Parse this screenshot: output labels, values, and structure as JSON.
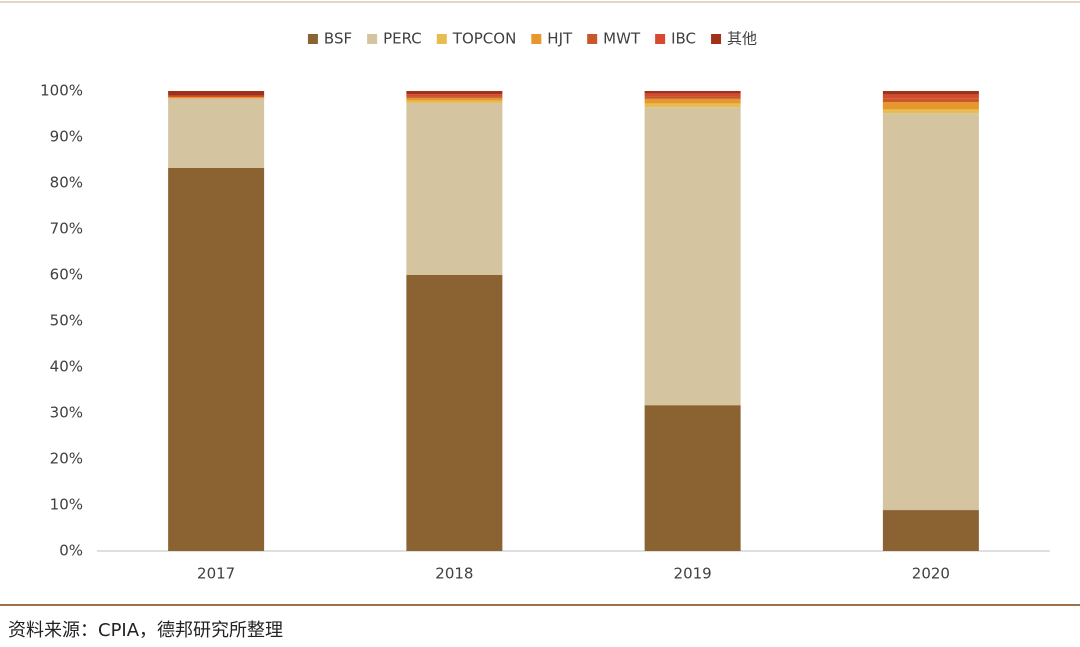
{
  "chart_data": {
    "type": "stacked_bar",
    "categories": [
      "2017",
      "2018",
      "2019",
      "2020"
    ],
    "series": [
      {
        "name": "BSF",
        "color": "#8b6333",
        "values": [
          83.3,
          60.0,
          31.7,
          8.9
        ]
      },
      {
        "name": "PERC",
        "color": "#d4c49f",
        "values": [
          15.1,
          37.4,
          64.8,
          86.3
        ]
      },
      {
        "name": "TOPCON",
        "color": "#e8bd4f",
        "values": [
          0,
          0.5,
          0.8,
          0.8
        ]
      },
      {
        "name": "HJT",
        "color": "#e8962e",
        "values": [
          0.3,
          0.6,
          1.0,
          1.6
        ]
      },
      {
        "name": "MWT",
        "color": "#c8572b",
        "values": [
          0,
          0.4,
          0.6,
          0.8
        ]
      },
      {
        "name": "IBC",
        "color": "#d84a2f",
        "values": [
          0.3,
          0.4,
          0.5,
          0.8
        ]
      },
      {
        "name": "其他",
        "color": "#a0321a",
        "values": [
          1.0,
          0.7,
          0.6,
          0.8
        ]
      }
    ],
    "ylim": [
      0,
      100
    ],
    "yticks": [
      {
        "value": 0,
        "label": "0%"
      },
      {
        "value": 10,
        "label": "10%"
      },
      {
        "value": 20,
        "label": "20%"
      },
      {
        "value": 30,
        "label": "30%"
      },
      {
        "value": 40,
        "label": "40%"
      },
      {
        "value": 50,
        "label": "50%"
      },
      {
        "value": 60,
        "label": "60%"
      },
      {
        "value": 70,
        "label": "70%"
      },
      {
        "value": 80,
        "label": "80%"
      },
      {
        "value": 90,
        "label": "90%"
      },
      {
        "value": 100,
        "label": "100%"
      }
    ],
    "grid": false,
    "legend": "top",
    "source": "资料来源：CPIA，德邦研究所整理"
  }
}
